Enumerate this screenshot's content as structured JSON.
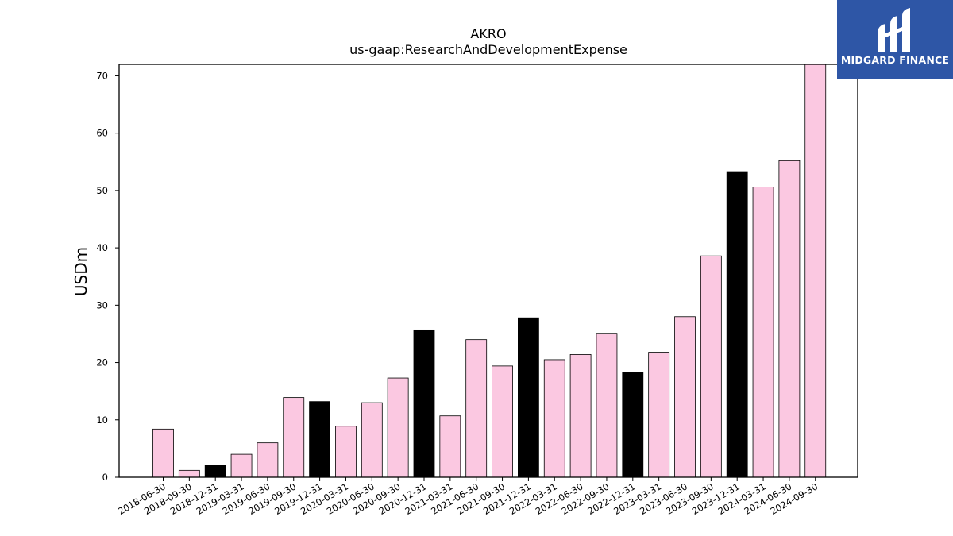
{
  "brand": {
    "name": "MIDGARD FINANCE"
  },
  "chart_data": {
    "type": "bar",
    "title": "AKRO",
    "subtitle": "us-gaap:ResearchAndDevelopmentExpense",
    "ylabel": "USDm",
    "xlabel": "",
    "ylim": [
      0,
      72
    ],
    "yticks": [
      0,
      10,
      20,
      30,
      40,
      50,
      60,
      70
    ],
    "categories": [
      "2018-06-30",
      "2018-09-30",
      "2018-12-31",
      "2019-03-31",
      "2019-06-30",
      "2019-09-30",
      "2019-12-31",
      "2020-03-31",
      "2020-06-30",
      "2020-09-30",
      "2020-12-31",
      "2021-03-31",
      "2021-06-30",
      "2021-09-30",
      "2021-12-31",
      "2022-03-31",
      "2022-06-30",
      "2022-09-30",
      "2022-12-31",
      "2023-03-31",
      "2023-06-30",
      "2023-09-30",
      "2023-12-31",
      "2024-03-31",
      "2024-06-30",
      "2024-09-30"
    ],
    "values": [
      8.4,
      1.2,
      2.1,
      4.0,
      6.0,
      13.9,
      13.2,
      8.9,
      13.0,
      17.3,
      25.7,
      10.7,
      24.0,
      19.4,
      27.8,
      20.5,
      21.4,
      25.1,
      18.3,
      21.8,
      28.0,
      38.6,
      53.3,
      50.6,
      55.2,
      72.0
    ],
    "highlight": [
      false,
      false,
      true,
      false,
      false,
      false,
      true,
      false,
      false,
      false,
      true,
      false,
      false,
      false,
      true,
      false,
      false,
      false,
      true,
      false,
      false,
      false,
      true,
      false,
      false,
      false
    ],
    "colors": {
      "normal": "#fbc8e1",
      "highlight": "#000000",
      "edge": "#000000"
    },
    "grid": false,
    "legend": "none"
  }
}
